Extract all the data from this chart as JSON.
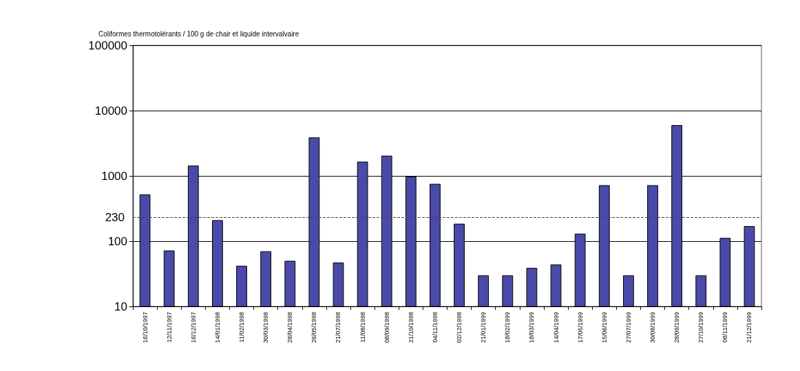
{
  "chart_data": {
    "type": "bar",
    "ylabel": "Coliformes thermotolérants / 100 g de chair et liquide intervalvaire",
    "categories": [
      "16/10/1997",
      "12/11/1997",
      "16/12/1997",
      "14/01/1998",
      "11/02/1998",
      "30/03/1998",
      "28/04/1998",
      "26/05/1998",
      "21/07/1998",
      "11/08/1998",
      "08/09/1998",
      "21/10/1998",
      "04/11/1998",
      "02/12/1998",
      "21/01/1999",
      "18/02/1999",
      "18/03/1999",
      "14/04/1999",
      "17/05/1999",
      "15/06/1999",
      "27/07/1999",
      "30/08/1999",
      "28/09/1999",
      "27/10/1999",
      "08/11/1999",
      "21/12/1999"
    ],
    "series": [
      {
        "color": "#4a4aa8",
        "values": [
          520,
          72,
          1440,
          210,
          42,
          70,
          50,
          3900,
          47,
          1650,
          2040,
          980,
          755,
          185,
          30,
          30,
          39,
          44,
          130,
          720,
          30,
          720,
          6000,
          30,
          112,
          170
        ]
      }
    ],
    "log": "y",
    "ylim": [
      10,
      100000
    ],
    "yticks": [
      10,
      100,
      1000,
      10000,
      100000
    ],
    "grid": "y",
    "ref_lines": [
      {
        "axis": "y",
        "value": 230,
        "label": "230",
        "color": "#444444",
        "line_style": "dashed"
      }
    ]
  }
}
